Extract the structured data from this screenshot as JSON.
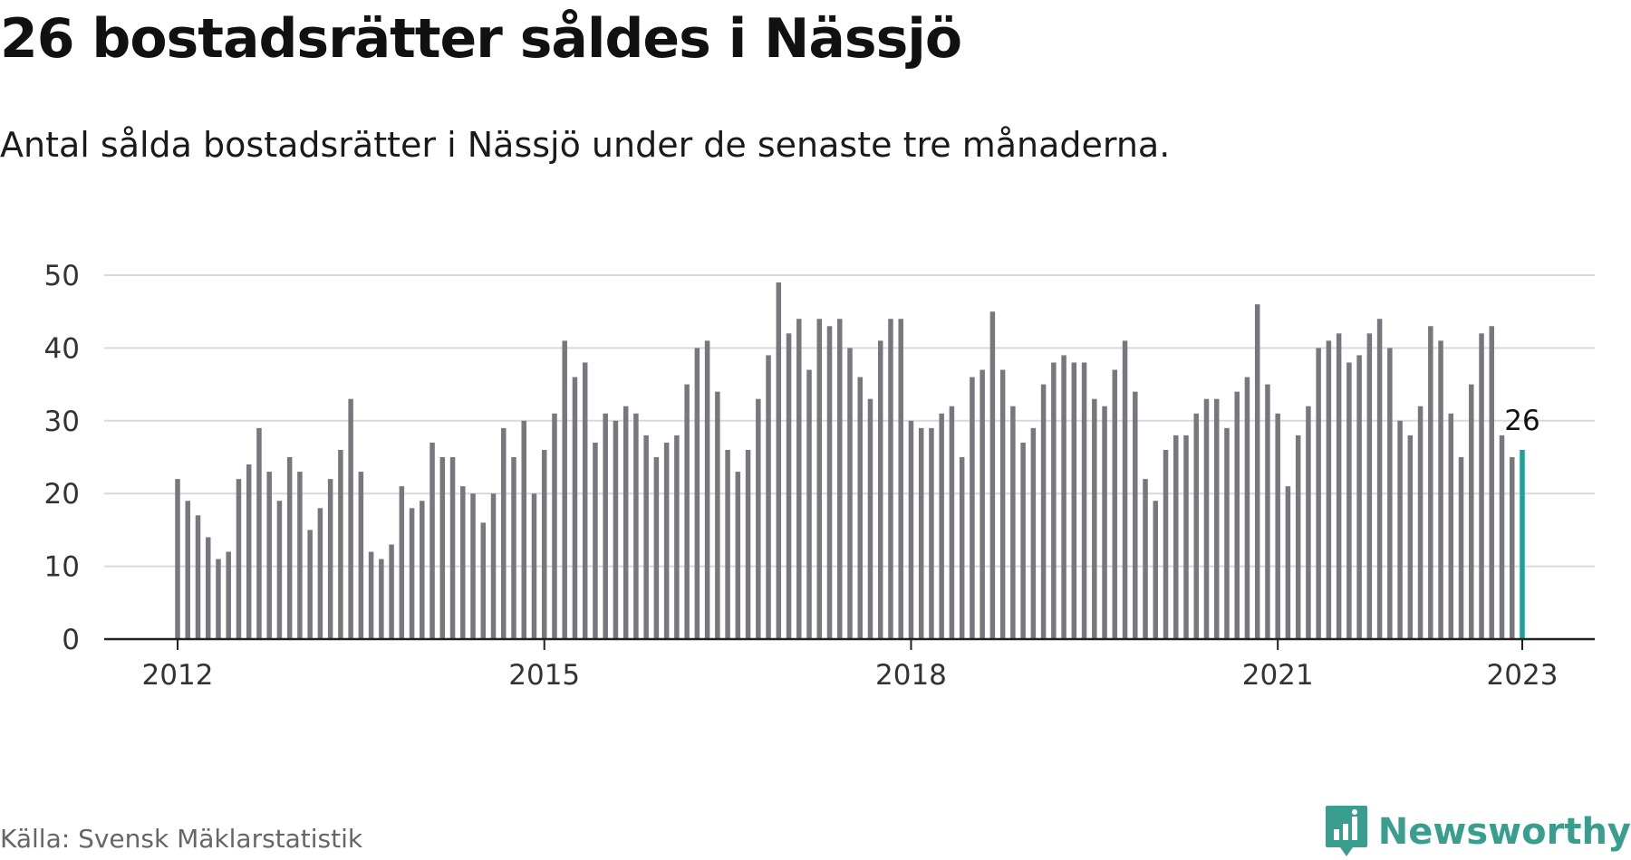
{
  "title": "26 bostadsrätter såldes i Nässjö",
  "subtitle": "Antal sålda bostadsrätter i Nässjö under de senaste tre månaderna.",
  "source": "Källa: Svensk Mäklarstatistik",
  "brand": "Newsworthy",
  "colors": {
    "bar": "#77777d",
    "highlight": "#1aa39a",
    "grid": "#d9d9d9",
    "axis": "#222222",
    "brand": "#3a9e8f"
  },
  "chart_data": {
    "type": "bar",
    "start": "2012-01",
    "frequency": "monthly",
    "values": [
      22,
      19,
      17,
      14,
      11,
      12,
      22,
      24,
      29,
      23,
      19,
      25,
      23,
      15,
      18,
      22,
      26,
      33,
      23,
      12,
      11,
      13,
      21,
      18,
      19,
      27,
      25,
      25,
      21,
      20,
      16,
      20,
      29,
      25,
      30,
      20,
      26,
      31,
      41,
      36,
      38,
      27,
      31,
      30,
      32,
      31,
      28,
      25,
      27,
      28,
      35,
      40,
      41,
      34,
      26,
      23,
      26,
      33,
      39,
      49,
      42,
      44,
      37,
      44,
      43,
      44,
      40,
      36,
      33,
      41,
      44,
      44,
      30,
      29,
      29,
      31,
      32,
      25,
      36,
      37,
      45,
      37,
      32,
      27,
      29,
      35,
      38,
      39,
      38,
      38,
      33,
      32,
      37,
      41,
      34,
      22,
      19,
      26,
      28,
      28,
      31,
      33,
      33,
      29,
      34,
      36,
      46,
      35,
      31,
      21,
      28,
      32,
      40,
      41,
      42,
      38,
      39,
      42,
      44,
      40,
      30,
      28,
      32,
      43,
      41,
      31,
      25,
      35,
      42,
      43,
      28,
      25,
      26
    ],
    "highlight_last": true,
    "annotation": "26",
    "x_ticks": [
      "2012",
      "2015",
      "2018",
      "2021",
      "2023"
    ],
    "y_ticks": [
      0,
      10,
      20,
      30,
      40,
      50
    ],
    "ylim": [
      0,
      50
    ],
    "grid": true,
    "legend": "none",
    "xlabel": "",
    "ylabel": ""
  }
}
